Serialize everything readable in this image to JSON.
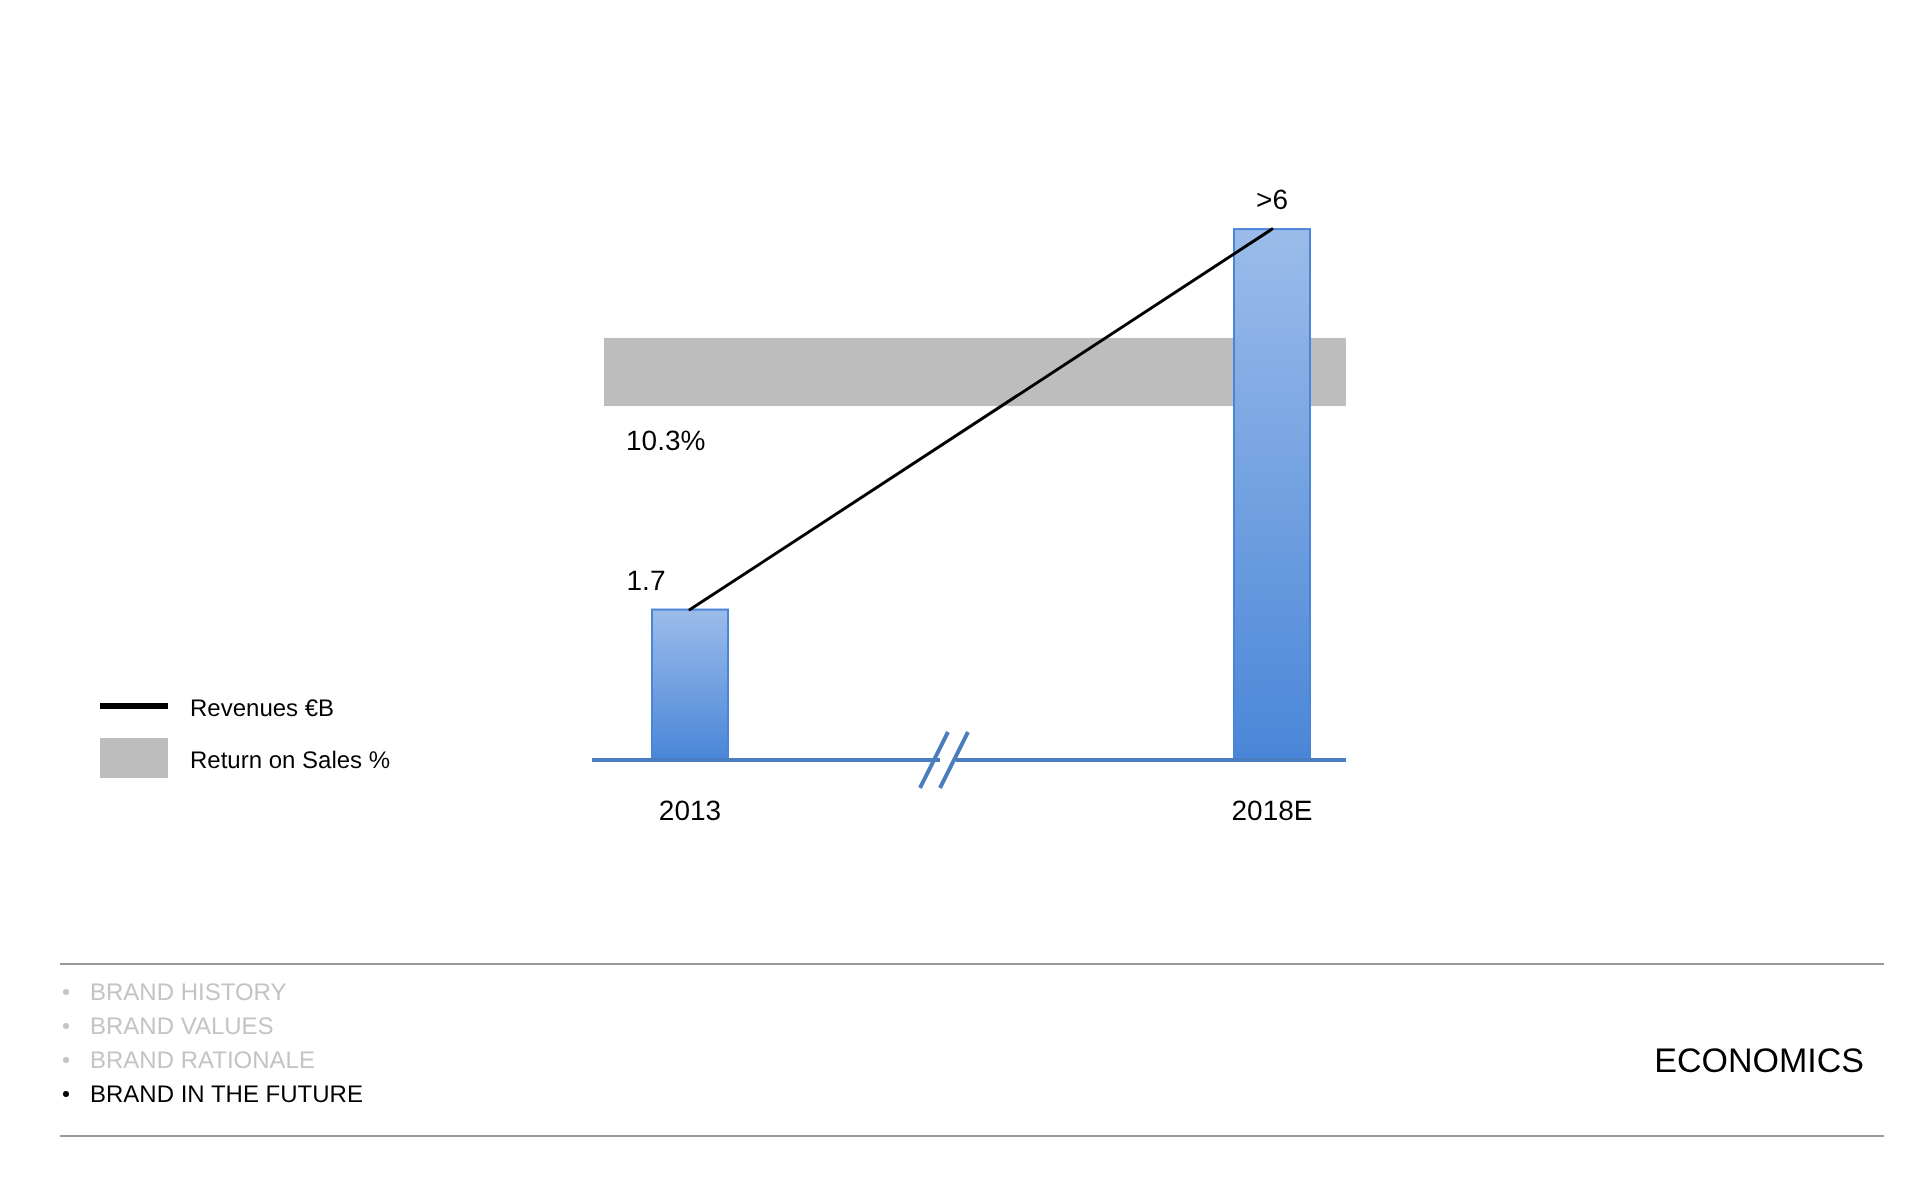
{
  "chart_data": {
    "type": "bar",
    "title": "ECONOMICS",
    "categories": [
      "2013",
      "2018E"
    ],
    "tick_labels": "x",
    "legend": "left",
    "series": [
      {
        "color": "#4a86d8",
        "values": [
          1.7,
          6
        ],
        "value_labels": [
          "1.7",
          ">6"
        ]
      },
      {
        "type": "line",
        "name": "Revenues €B",
        "color": "#000000",
        "values": [
          1.7,
          6
        ]
      }
    ],
    "bands": [
      {
        "axis": "y",
        "from": 4.0,
        "to": 4.77,
        "label": "Return on Sales %",
        "color": "#bdbdbd"
      }
    ],
    "annotations": [
      "10.3%",
      "BRAND HISTORY",
      "BRAND VALUES",
      "BRAND RATIONALE",
      "BRAND IN THE FUTURE"
    ]
  }
}
